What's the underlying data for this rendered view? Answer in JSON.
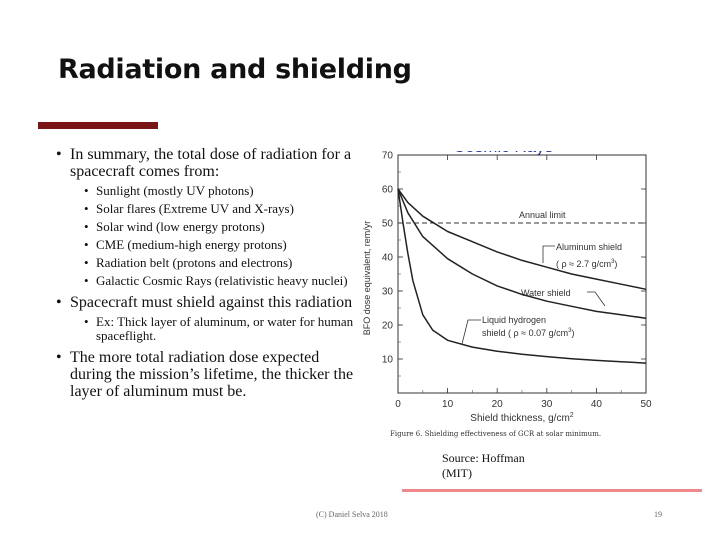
{
  "slide": {
    "title": "Radiation and shielding",
    "bullets": [
      {
        "text": "In summary, the total dose of radiation for a spacecraft comes from:",
        "sub": [
          "Sunlight (mostly UV photons)",
          "Solar flares (Extreme UV and X-rays)",
          "Solar wind (low energy protons)",
          "CME (medium-high energy protons)",
          "Radiation belt (protons and electrons)",
          "Galactic Cosmic Rays (relativistic heavy nuclei)"
        ]
      },
      {
        "text": "Spacecraft must shield against this radiation",
        "sub": [
          "Ex: Thick layer of aluminum, or water for human spaceflight."
        ]
      },
      {
        "text": "The more total radiation dose expected during the mission’s lifetime, the thicker the layer of aluminum must be.",
        "sub": []
      }
    ],
    "source": [
      "Source: Hoffman",
      "(MIT)"
    ],
    "footer": {
      "center": "(C) Daniel Selva 2018",
      "page_number": "19"
    },
    "colors": {
      "accent": "#7a1517",
      "bottom_line": "#f08a8a",
      "overlay_text": "#2a3a9a"
    }
  },
  "figure": {
    "overlay_text": "Cosmic Rays",
    "caption": "Figure 6. Shielding effectiveness of GCR at solar minimum.",
    "ylabel": "BFO dose equivalent, rem/yr",
    "xlabel": "Shield thickness, g/cm",
    "xlabel_sup": "2",
    "annotations": {
      "annual_limit": "Annual limit",
      "aluminum": "Aluminum shield",
      "aluminum_rho": "( ρ ≈ 2.7 g/cm",
      "aluminum_rho_sup": "3",
      "aluminum_rho_end": ")",
      "water": "Water shield",
      "hydrogen_1": "Liquid hydrogen",
      "hydrogen_2": "shield  ( ρ ≈ 0.07 g/cm",
      "hydrogen_rho_sup": "3",
      "hydrogen_rho_end": ")"
    }
  },
  "chart_data": {
    "type": "line",
    "title": "Shielding effectiveness of GCR at solar minimum",
    "xlabel": "Shield thickness, g/cm2",
    "ylabel": "BFO dose equivalent, rem/yr",
    "xlim": [
      0,
      50
    ],
    "ylim": [
      0,
      70
    ],
    "xticks": [
      0,
      10,
      20,
      30,
      40,
      50
    ],
    "yticks": [
      10,
      20,
      30,
      40,
      50,
      60,
      70
    ],
    "reference_lines": [
      {
        "name": "Annual limit",
        "y": 50
      }
    ],
    "series": [
      {
        "name": "Aluminum shield",
        "x": [
          0,
          2,
          5,
          10,
          15,
          20,
          25,
          30,
          35,
          40,
          45,
          50
        ],
        "y": [
          60,
          56,
          52,
          47.5,
          44.5,
          41.5,
          39,
          37,
          35,
          33.5,
          32,
          30.5
        ]
      },
      {
        "name": "Water shield",
        "x": [
          0,
          2,
          5,
          10,
          15,
          20,
          25,
          30,
          35,
          40,
          45,
          50
        ],
        "y": [
          60,
          53,
          46,
          39.5,
          35,
          31.5,
          29,
          27,
          25.5,
          24,
          23,
          22
        ]
      },
      {
        "name": "Liquid hydrogen shield",
        "x": [
          0,
          1,
          2,
          3,
          5,
          7,
          10,
          15,
          20,
          25,
          30,
          35,
          40,
          45,
          50
        ],
        "y": [
          60,
          50,
          41,
          33,
          23,
          18.5,
          15.5,
          13.5,
          12.3,
          11.4,
          10.7,
          10.1,
          9.6,
          9.2,
          8.8
        ]
      }
    ]
  }
}
